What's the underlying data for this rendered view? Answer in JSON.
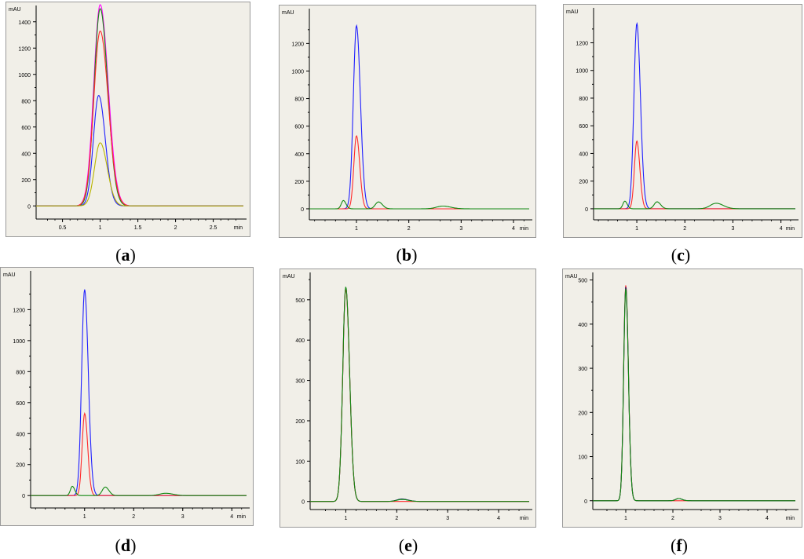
{
  "colors": {
    "blue": "#1f1fff",
    "red": "#ff2a2a",
    "green": "#138a13",
    "magenta": "#ff00ff",
    "olive": "#b8b400",
    "darkblue": "#141a6e",
    "axis": "#000000"
  },
  "chart_data": [
    {
      "id": "a",
      "type": "line",
      "caption_label": "a",
      "ylabel": "mAU",
      "xlabel": "min",
      "xlim": [
        0.15,
        2.9
      ],
      "ylim": [
        -100,
        1500
      ],
      "xticks": [
        0.5,
        1,
        1.5,
        2,
        2.5
      ],
      "xtick_labels": [
        "0.5",
        "1",
        "1.5",
        "2",
        "2.5"
      ],
      "yticks": [
        0,
        200,
        400,
        600,
        800,
        1000,
        1200,
        1400
      ],
      "ytick_labels": [
        "0",
        "200",
        "400",
        "600",
        "800",
        "1000",
        "1200",
        "1400"
      ],
      "baseline_x": [
        0.15,
        2.9
      ],
      "series": [
        {
          "color": "magenta",
          "peaks": [
            {
              "center": 1.0,
              "height": 1530,
              "sigma": 0.085
            }
          ]
        },
        {
          "color": "green",
          "peaks": [
            {
              "center": 1.0,
              "height": 1500,
              "sigma": 0.08
            }
          ]
        },
        {
          "color": "red",
          "peaks": [
            {
              "center": 1.0,
              "height": 1330,
              "sigma": 0.085
            }
          ]
        },
        {
          "color": "blue",
          "peaks": [
            {
              "center": 0.98,
              "height": 840,
              "sigma": 0.07
            }
          ]
        },
        {
          "color": "olive",
          "peaks": [
            {
              "center": 1.0,
              "height": 480,
              "sigma": 0.075
            }
          ]
        }
      ]
    },
    {
      "id": "b",
      "type": "line",
      "caption_label": "b",
      "ylabel": "mAU",
      "xlabel": "min",
      "xlim": [
        0.1,
        4.3
      ],
      "ylim": [
        -80,
        1430
      ],
      "xticks": [
        1,
        2,
        3,
        4
      ],
      "xtick_labels": [
        "1",
        "2",
        "3",
        "4"
      ],
      "yticks": [
        0,
        200,
        400,
        600,
        800,
        1000,
        1200
      ],
      "ytick_labels": [
        "0",
        "200",
        "400",
        "600",
        "800",
        "1000",
        "1200"
      ],
      "series": [
        {
          "color": "blue",
          "peaks": [
            {
              "center": 1.0,
              "height": 1330,
              "sigma": 0.06
            }
          ]
        },
        {
          "color": "red",
          "peaks": [
            {
              "center": 1.0,
              "height": 530,
              "sigma": 0.05
            }
          ]
        },
        {
          "color": "green",
          "peaks": [
            {
              "center": 0.75,
              "height": 60,
              "sigma": 0.04
            },
            {
              "center": 1.42,
              "height": 50,
              "sigma": 0.06
            },
            {
              "center": 2.65,
              "height": 20,
              "sigma": 0.12
            }
          ]
        }
      ]
    },
    {
      "id": "c",
      "type": "line",
      "caption_label": "c",
      "ylabel": "mAU",
      "xlabel": "min",
      "xlim": [
        0.1,
        4.3
      ],
      "ylim": [
        -80,
        1430
      ],
      "xticks": [
        1,
        2,
        3,
        4
      ],
      "xtick_labels": [
        "1",
        "2",
        "3",
        "4"
      ],
      "yticks": [
        0,
        200,
        400,
        600,
        800,
        1000,
        1200
      ],
      "ytick_labels": [
        "0",
        "200",
        "400",
        "600",
        "800",
        "1000",
        "1200"
      ],
      "series": [
        {
          "color": "blue",
          "peaks": [
            {
              "center": 1.0,
              "height": 1340,
              "sigma": 0.06
            }
          ]
        },
        {
          "color": "red",
          "peaks": [
            {
              "center": 1.0,
              "height": 490,
              "sigma": 0.05
            }
          ]
        },
        {
          "color": "green",
          "peaks": [
            {
              "center": 0.75,
              "height": 55,
              "sigma": 0.04
            },
            {
              "center": 1.42,
              "height": 50,
              "sigma": 0.06
            },
            {
              "center": 2.65,
              "height": 40,
              "sigma": 0.12
            }
          ]
        }
      ]
    },
    {
      "id": "d",
      "type": "line",
      "caption_label": "d",
      "ylabel": "mAU",
      "xlabel": "min",
      "xlim": [
        -0.1,
        4.3
      ],
      "ylim": [
        -80,
        1430
      ],
      "xticks": [
        1,
        2,
        3,
        4
      ],
      "xtick_labels": [
        "1",
        "2",
        "3",
        "4"
      ],
      "yticks": [
        0,
        200,
        400,
        600,
        800,
        1000,
        1200
      ],
      "ytick_labels": [
        "0",
        "200",
        "400",
        "600",
        "800",
        "1000",
        "1200"
      ],
      "series": [
        {
          "color": "blue",
          "peaks": [
            {
              "center": 1.0,
              "height": 1330,
              "sigma": 0.06
            }
          ]
        },
        {
          "color": "red",
          "peaks": [
            {
              "center": 1.0,
              "height": 530,
              "sigma": 0.05
            }
          ]
        },
        {
          "color": "green",
          "peaks": [
            {
              "center": 0.75,
              "height": 60,
              "sigma": 0.04
            },
            {
              "center": 1.42,
              "height": 55,
              "sigma": 0.06
            },
            {
              "center": 2.65,
              "height": 15,
              "sigma": 0.12
            }
          ]
        }
      ]
    },
    {
      "id": "e",
      "type": "line",
      "caption_label": "e",
      "ylabel": "mAU",
      "xlabel": "min",
      "xlim": [
        0.3,
        4.6
      ],
      "ylim": [
        -20,
        560
      ],
      "xticks": [
        1,
        2,
        3,
        4
      ],
      "xtick_labels": [
        "1",
        "2",
        "3",
        "4"
      ],
      "yticks": [
        0,
        100,
        200,
        300,
        400,
        500
      ],
      "ytick_labels": [
        "0",
        "100",
        "200",
        "300",
        "400",
        "500"
      ],
      "series": [
        {
          "color": "darkblue",
          "peaks": [
            {
              "center": 1.0,
              "height": 530,
              "sigma": 0.06
            },
            {
              "center": 2.1,
              "height": 6,
              "sigma": 0.1
            }
          ]
        },
        {
          "color": "red",
          "peaks": [
            {
              "center": 1.0,
              "height": 528,
              "sigma": 0.06
            }
          ]
        },
        {
          "color": "green",
          "peaks": [
            {
              "center": 1.0,
              "height": 532,
              "sigma": 0.06
            },
            {
              "center": 2.1,
              "height": 5,
              "sigma": 0.1
            }
          ]
        }
      ]
    },
    {
      "id": "f",
      "type": "line",
      "caption_label": "f",
      "ylabel": "mAU",
      "xlabel": "min",
      "xlim": [
        0.3,
        4.6
      ],
      "ylim": [
        -20,
        510
      ],
      "xticks": [
        1,
        2,
        3,
        4
      ],
      "xtick_labels": [
        "1",
        "2",
        "3",
        "4"
      ],
      "yticks": [
        0,
        100,
        200,
        300,
        400,
        500
      ],
      "ytick_labels": [
        "0",
        "100",
        "200",
        "300",
        "400",
        "500"
      ],
      "series": [
        {
          "color": "red",
          "peaks": [
            {
              "center": 1.0,
              "height": 488,
              "sigma": 0.045
            }
          ]
        },
        {
          "color": "darkblue",
          "peaks": [
            {
              "center": 1.0,
              "height": 484,
              "sigma": 0.045
            },
            {
              "center": 2.12,
              "height": 5,
              "sigma": 0.06
            }
          ]
        },
        {
          "color": "green",
          "peaks": [
            {
              "center": 1.0,
              "height": 480,
              "sigma": 0.045
            },
            {
              "center": 2.12,
              "height": 5,
              "sigma": 0.06
            }
          ]
        }
      ]
    }
  ]
}
